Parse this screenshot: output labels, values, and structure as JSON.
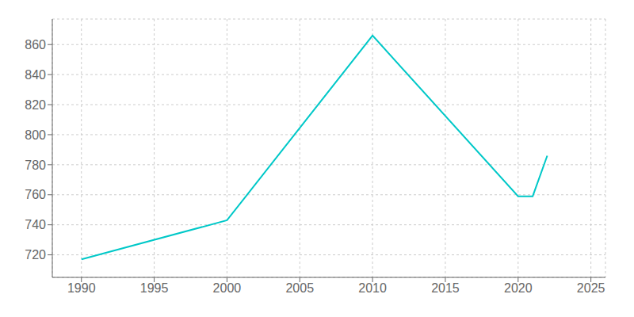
{
  "chart_data": {
    "type": "line",
    "x": [
      1990,
      2000,
      2010,
      2020,
      2021,
      2022
    ],
    "values": [
      717,
      743,
      866,
      759,
      759,
      786
    ],
    "color": "#00c8c8",
    "xlim": [
      1988,
      2026
    ],
    "ylim": [
      705,
      877
    ],
    "xticks": [
      1990,
      1995,
      2000,
      2005,
      2010,
      2015,
      2020,
      2025
    ],
    "yticks": [
      720,
      740,
      760,
      780,
      800,
      820,
      840,
      860
    ],
    "grid": true
  }
}
